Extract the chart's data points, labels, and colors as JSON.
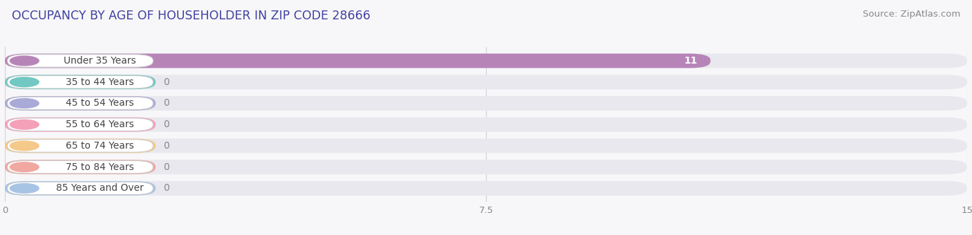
{
  "title": "OCCUPANCY BY AGE OF HOUSEHOLDER IN ZIP CODE 28666",
  "source": "Source: ZipAtlas.com",
  "categories": [
    "Under 35 Years",
    "35 to 44 Years",
    "45 to 54 Years",
    "55 to 64 Years",
    "65 to 74 Years",
    "75 to 84 Years",
    "85 Years and Over"
  ],
  "values": [
    11,
    0,
    0,
    0,
    0,
    0,
    0
  ],
  "bar_colors": [
    "#b784b8",
    "#72c8c2",
    "#aaaad8",
    "#f4a0b8",
    "#f5c98a",
    "#f0a8a0",
    "#a8c4e4"
  ],
  "xlim": [
    0,
    15
  ],
  "xticks": [
    0,
    7.5,
    15
  ],
  "background_color": "#f7f7f9",
  "bar_bg_color": "#e8e8ee",
  "title_fontsize": 12.5,
  "source_fontsize": 9.5,
  "label_fontsize": 10,
  "value_label_color_nonzero": "#ffffff",
  "value_label_color_zero": "#888888",
  "title_color": "#4040a0",
  "label_text_color": "#444444"
}
